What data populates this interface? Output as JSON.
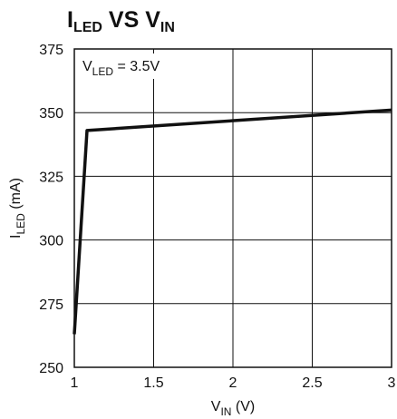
{
  "chart_data": {
    "type": "line",
    "title": {
      "base1": "I",
      "sub1": "LED",
      "mid": " VS ",
      "base2": "V",
      "sub2": "IN"
    },
    "xlabel": {
      "base": "V",
      "sub": "IN",
      "rest": " (V)"
    },
    "ylabel": {
      "base": "I",
      "sub": "LED",
      "rest": " (mA)"
    },
    "xlim": [
      1,
      3
    ],
    "ylim": [
      250,
      375
    ],
    "x_ticks": [
      1,
      1.5,
      2,
      2.5,
      3
    ],
    "y_ticks": [
      250,
      275,
      300,
      325,
      350,
      375
    ],
    "x_tick_labels": [
      "1",
      "1.5",
      "2",
      "2.5",
      "3"
    ],
    "y_tick_labels": [
      "250",
      "275",
      "300",
      "325",
      "350",
      "375"
    ],
    "grid": true,
    "annotation": {
      "base": "V",
      "sub": "LED",
      "rest": " = 3.5V"
    },
    "series": [
      {
        "x": [
          1.0,
          1.08,
          3.0
        ],
        "y": [
          263,
          343,
          351
        ]
      }
    ]
  }
}
